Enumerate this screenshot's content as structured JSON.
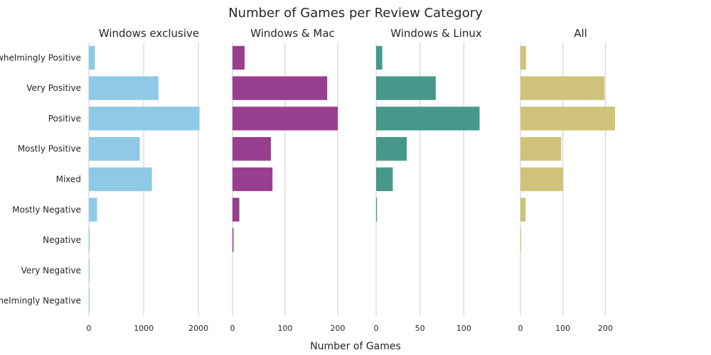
{
  "chart_data": {
    "type": "bar",
    "orientation": "horizontal",
    "title": "Number of Games per Review Category",
    "xlabel": "Number of Games",
    "grid": "vertical",
    "categories": [
      "Overwhelmingly Positive",
      "Very Positive",
      "Positive",
      "Mostly Positive",
      "Mixed",
      "Mostly Negative",
      "Negative",
      "Very Negative",
      "Overwhelmingly Negative"
    ],
    "panels": [
      {
        "title": "Windows exclusive",
        "color": "#8ecae6",
        "xlim": [
          0,
          2400
        ],
        "ticks": [
          0,
          1000,
          2000
        ],
        "values": [
          110,
          1270,
          2020,
          930,
          1150,
          150,
          15,
          5,
          3
        ]
      },
      {
        "title": "Windows & Mac",
        "color": "#993f8f",
        "xlim": [
          0,
          250
        ],
        "ticks": [
          0,
          100,
          200
        ],
        "values": [
          23,
          180,
          200,
          73,
          76,
          13,
          2,
          0,
          0
        ]
      },
      {
        "title": "Windows & Linux",
        "color": "#46998a",
        "xlim": [
          0,
          150
        ],
        "ticks": [
          0,
          50,
          100
        ],
        "values": [
          7,
          68,
          118,
          35,
          19,
          1,
          0,
          0,
          0
        ]
      },
      {
        "title": "All",
        "color": "#cfc27a",
        "xlim": [
          0,
          310
        ],
        "ticks": [
          0,
          100,
          200
        ],
        "values": [
          13,
          198,
          223,
          96,
          101,
          12,
          1,
          0,
          0
        ]
      }
    ]
  }
}
